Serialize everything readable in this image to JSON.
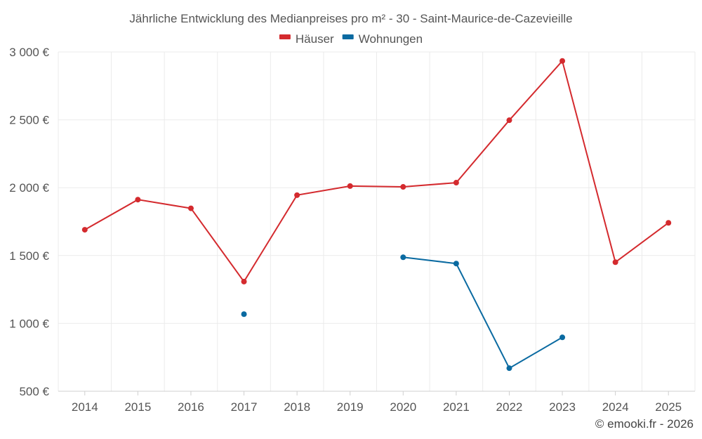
{
  "chart_data": {
    "type": "line",
    "title": "Jährliche Entwicklung des Medianpreises pro m² - 30 - Saint-Maurice-de-Cazevieille",
    "categories": [
      "2014",
      "2015",
      "2016",
      "2017",
      "2018",
      "2019",
      "2020",
      "2021",
      "2022",
      "2023",
      "2024",
      "2025"
    ],
    "series": [
      {
        "name": "Häuser",
        "color": "#d42a2e",
        "values": [
          1690,
          1912,
          1848,
          1308,
          1945,
          2012,
          2006,
          2037,
          2497,
          2934,
          1451,
          1741
        ]
      },
      {
        "name": "Wohnungen",
        "color": "#0a6aa1",
        "values": [
          null,
          null,
          null,
          1068,
          null,
          null,
          1487,
          1441,
          670,
          897,
          null,
          null
        ]
      }
    ],
    "ylim": [
      500,
      3000
    ],
    "yticks": [
      500,
      1000,
      1500,
      2000,
      2500,
      3000
    ],
    "ytick_labels": [
      "500 €",
      "1 000 €",
      "1 500 €",
      "2 000 €",
      "2 500 €",
      "3 000 €"
    ],
    "xlabel": "",
    "ylabel": "",
    "grid": true,
    "legend_position": "top-center"
  },
  "credit": "© emooki.fr - 2026"
}
